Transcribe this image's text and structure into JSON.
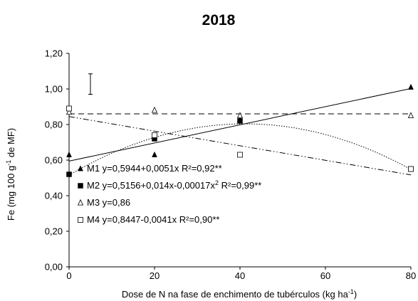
{
  "chart_data": {
    "type": "scatter",
    "title": "2018",
    "xlabel_prefix": "Dose de N na fase de enchimento de tubérculos (kg ha",
    "xlabel_sup": "-1",
    "xlabel_suffix": ")",
    "ylabel_prefix": "Fe (mg 100 g",
    "ylabel_sup": "-1",
    "ylabel_suffix": " de MF)",
    "xlim": [
      0,
      80
    ],
    "ylim": [
      0,
      1.2
    ],
    "xticks": [
      "0",
      "20",
      "40",
      "60",
      "80"
    ],
    "yticks": [
      "0,00",
      "0,20",
      "0,40",
      "0,60",
      "0,80",
      "1,00",
      "1,20"
    ],
    "x": [
      0,
      20,
      40,
      80
    ],
    "error_bar": {
      "x": 5,
      "low": 0.97,
      "high": 1.085
    },
    "series": [
      {
        "name": "M1",
        "marker": "filled-triangle",
        "values": [
          0.63,
          0.63,
          0.83,
          1.01
        ],
        "equation": "y=0,5944+0,0051x R²=0,92**",
        "fit": {
          "kind": "linear",
          "a": 0.5944,
          "b": 0.0051
        },
        "line_style": "solid"
      },
      {
        "name": "M2",
        "marker": "filled-square",
        "values": [
          0.52,
          0.72,
          0.82,
          0.55
        ],
        "equation_main": "y=0,5156+0,014x-0,00017x",
        "equation_sup": "2",
        "equation_tail": " R²=0,99**",
        "fit": {
          "kind": "quadratic",
          "a": 0.5156,
          "b": 0.014,
          "c": -0.00017
        },
        "line_style": "dotted"
      },
      {
        "name": "M3",
        "marker": "open-triangle",
        "values": [
          0.87,
          0.88,
          0.85,
          0.85
        ],
        "equation": "y=0,86",
        "fit": {
          "kind": "constant",
          "a": 0.86
        },
        "line_style": "dashed"
      },
      {
        "name": "M4",
        "marker": "open-square",
        "values": [
          0.89,
          0.74,
          0.63,
          0.55
        ],
        "equation": "y=0,8447-0,0041x R²=0,90**",
        "fit": {
          "kind": "linear",
          "a": 0.8447,
          "b": -0.0041
        },
        "line_style": "dash-dot-dot"
      }
    ],
    "legend_position": "bottom-left",
    "grid": false,
    "colors": {
      "marks": "#000000",
      "background": "#ffffff"
    }
  }
}
